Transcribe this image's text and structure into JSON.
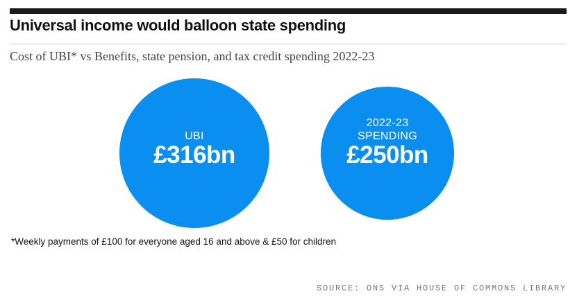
{
  "header": {
    "title": "Universal income would balloon state spending",
    "subtitle": "Cost of UBI* vs Benefits, state pension, and tax credit spending 2022-23"
  },
  "chart_data": {
    "type": "bubble",
    "unit": "£bn",
    "series": [
      {
        "name": "UBI",
        "label_lines": [
          "UBI"
        ],
        "value": 316,
        "value_label": "£316bn"
      },
      {
        "name": "2022-23 Spending",
        "label_lines": [
          "2022-23",
          "SPENDING"
        ],
        "value": 250,
        "value_label": "£250bn"
      }
    ],
    "bubble_color": "#0a8ff0"
  },
  "footnote": "*Weekly payments of £100 for everyone aged 16 and above & £50 for children",
  "source": "SOURCE: ONS VIA HOUSE OF COMMONS LIBRARY"
}
